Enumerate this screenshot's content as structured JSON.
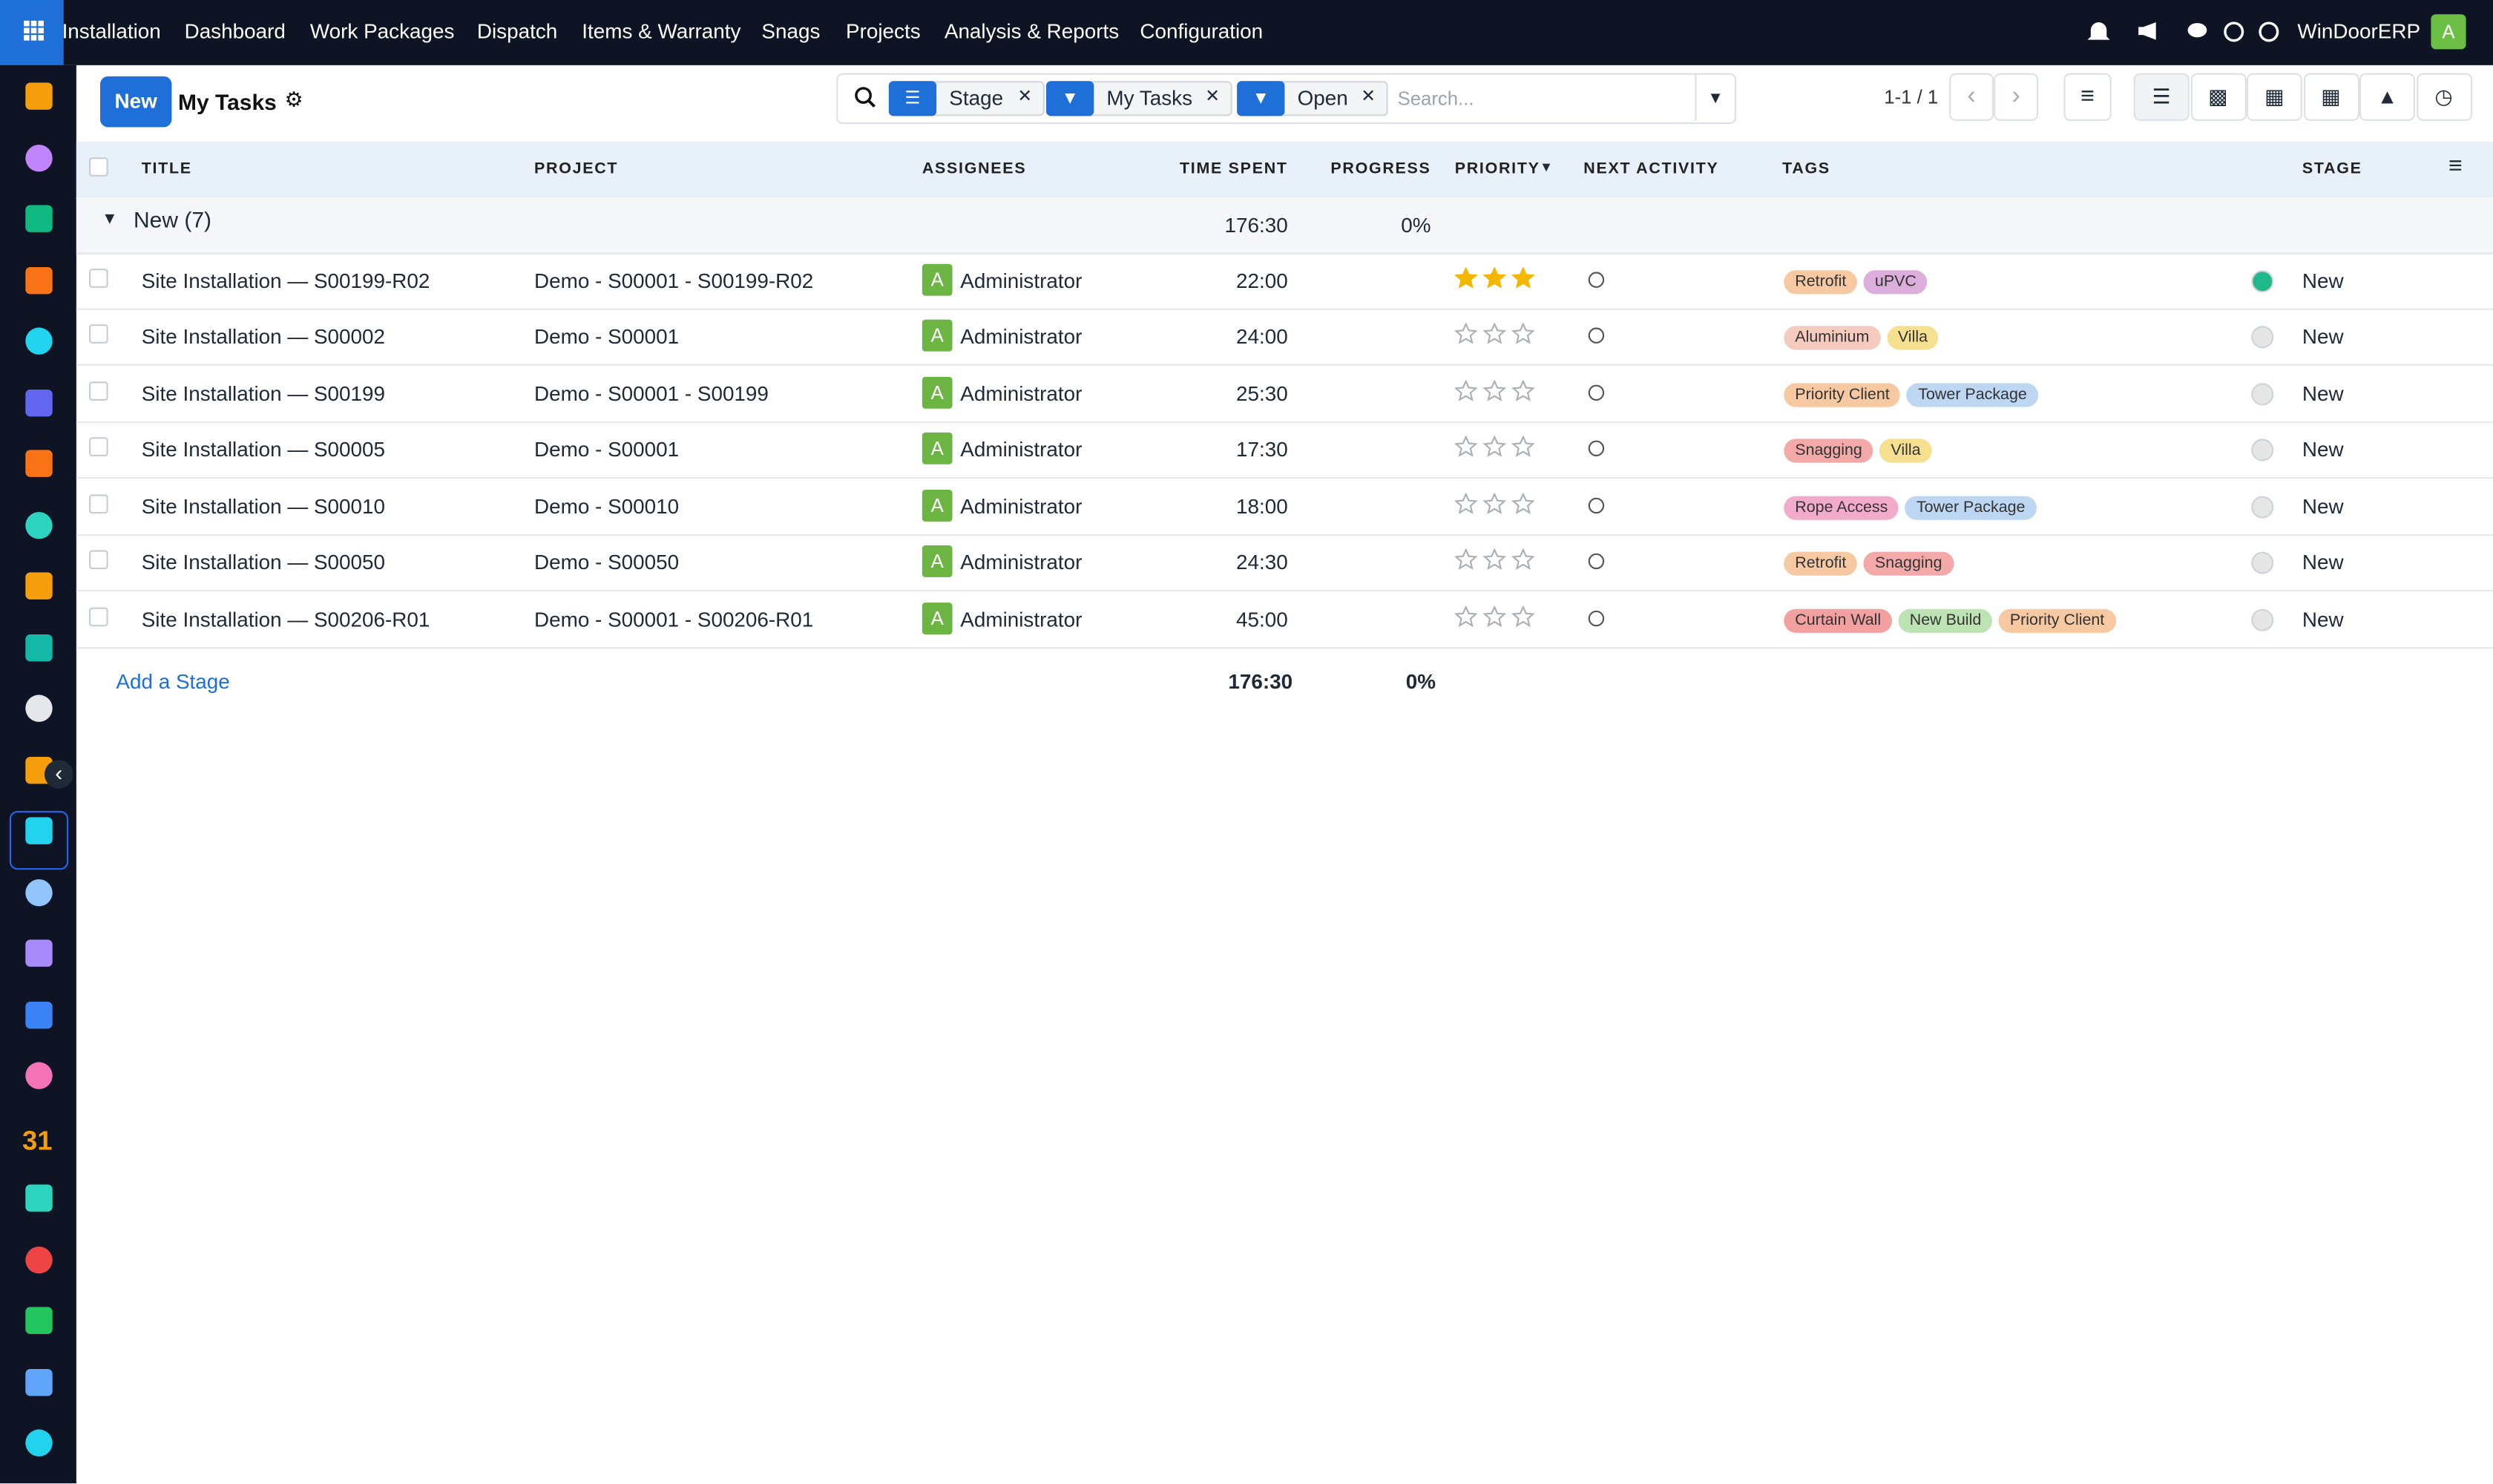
{
  "top_nav": {
    "app": "Installation",
    "menu": [
      "Dashboard",
      "Work Packages",
      "Dispatch",
      "Items & Warranty",
      "Snags",
      "Projects",
      "Analysis & Reports",
      "Configuration"
    ],
    "company": "WinDoorERP",
    "avatar": "A"
  },
  "sidebar": {
    "calendar_icon": "31"
  },
  "control_panel": {
    "new_button": "New",
    "view_title": "My Tasks",
    "facets": [
      "Stage",
      "My Tasks",
      "Open"
    ],
    "search_placeholder": "Search...",
    "pager": "1-1 / 1"
  },
  "table": {
    "columns": [
      "TITLE",
      "PROJECT",
      "ASSIGNEES",
      "TIME SPENT",
      "PROGRESS",
      "PRIORITY",
      "NEXT ACTIVITY",
      "TAGS",
      "STAGE"
    ],
    "group": {
      "label": "New (7)",
      "time_spent": "176:30",
      "progress": "0%"
    },
    "rows": [
      {
        "title": "Site Installation — S00199-R02",
        "project": "Demo - S00001 - S00199-R02",
        "assignee_initial": "A",
        "assignee": "Administrator",
        "time_spent": "22:00",
        "priority": 3,
        "tags": [
          {
            "label": "Retrofit",
            "color": "#f6c9a3"
          },
          {
            "label": "uPVC",
            "color": "#dcaedb"
          }
        ],
        "status_color": "#1fb88a",
        "stage": "New"
      },
      {
        "title": "Site Installation — S00002",
        "project": "Demo - S00001",
        "assignee_initial": "A",
        "assignee": "Administrator",
        "time_spent": "24:00",
        "priority": 0,
        "tags": [
          {
            "label": "Aluminium",
            "color": "#f6cbbf"
          },
          {
            "label": "Villa",
            "color": "#f6e08f"
          }
        ],
        "status_color": "#e6e6e6",
        "stage": "New"
      },
      {
        "title": "Site Installation — S00199",
        "project": "Demo - S00001 - S00199",
        "assignee_initial": "A",
        "assignee": "Administrator",
        "time_spent": "25:30",
        "priority": 0,
        "tags": [
          {
            "label": "Priority Client",
            "color": "#f6c9a3"
          },
          {
            "label": "Tower Package",
            "color": "#bdd6f2"
          }
        ],
        "status_color": "#e6e6e6",
        "stage": "New"
      },
      {
        "title": "Site Installation — S00005",
        "project": "Demo - S00001",
        "assignee_initial": "A",
        "assignee": "Administrator",
        "time_spent": "17:30",
        "priority": 0,
        "tags": [
          {
            "label": "Snagging",
            "color": "#f4a9a9"
          },
          {
            "label": "Villa",
            "color": "#f6e08f"
          }
        ],
        "status_color": "#e6e6e6",
        "stage": "New"
      },
      {
        "title": "Site Installation — S00010",
        "project": "Demo - S00010",
        "assignee_initial": "A",
        "assignee": "Administrator",
        "time_spent": "18:00",
        "priority": 0,
        "tags": [
          {
            "label": "Rope Access",
            "color": "#f3abcc"
          },
          {
            "label": "Tower Package",
            "color": "#bdd6f2"
          }
        ],
        "status_color": "#e6e6e6",
        "stage": "New"
      },
      {
        "title": "Site Installation — S00050",
        "project": "Demo - S00050",
        "assignee_initial": "A",
        "assignee": "Administrator",
        "time_spent": "24:30",
        "priority": 0,
        "tags": [
          {
            "label": "Retrofit",
            "color": "#f6c9a3"
          },
          {
            "label": "Snagging",
            "color": "#f4a9a9"
          }
        ],
        "status_color": "#e6e6e6",
        "stage": "New"
      },
      {
        "title": "Site Installation — S00206-R01",
        "project": "Demo - S00001 - S00206-R01",
        "assignee_initial": "A",
        "assignee": "Administrator",
        "time_spent": "45:00",
        "priority": 0,
        "tags": [
          {
            "label": "Curtain Wall",
            "color": "#f3a0a0"
          },
          {
            "label": "New Build",
            "color": "#bde3b4"
          },
          {
            "label": "Priority Client",
            "color": "#f6c9a3"
          }
        ],
        "status_color": "#e6e6e6",
        "stage": "New"
      }
    ],
    "footer": {
      "add_stage": "Add a Stage",
      "time_spent": "176:30",
      "progress": "0%"
    }
  }
}
